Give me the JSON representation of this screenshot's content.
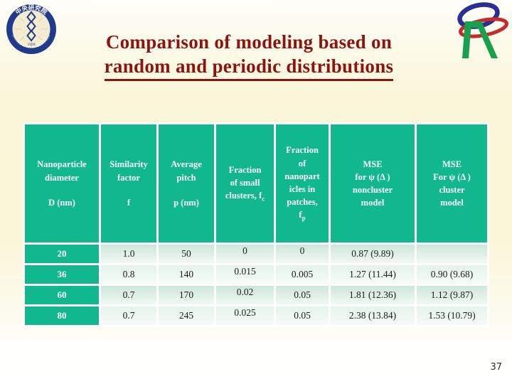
{
  "title": {
    "line1": "Comparison of modeling based on",
    "line2": "random and periodic distributions"
  },
  "page_number": "37",
  "colors": {
    "teal": "#12b88d",
    "title_red": "#8e130e",
    "logo_navy": "#223a8a",
    "logo_green": "#18a14d",
    "logo_red": "#c62a2d"
  },
  "logos": {
    "academia_sinica": {
      "arc_top": "中央研究院",
      "arc_bottom": "ACADEMIA SINICA",
      "year": "1928"
    },
    "nano_r": {
      "letter": "R"
    }
  },
  "table": {
    "headers": [
      {
        "id": "diameter",
        "lines": [
          "Nanoparticle",
          "diameter",
          "",
          "D (nm)"
        ]
      },
      {
        "id": "similarity",
        "lines": [
          "Similarity",
          "factor",
          "",
          "f"
        ]
      },
      {
        "id": "pitch",
        "lines": [
          "Average",
          "pitch",
          "",
          "p (nm)"
        ]
      },
      {
        "id": "fraction-small",
        "lines": [
          "Fraction",
          "of small",
          {
            "text": "clusters, f",
            "sub": "c"
          }
        ]
      },
      {
        "id": "fraction-patches",
        "lines": [
          "Fraction",
          "of",
          "nanopart",
          "icles in",
          "patches,",
          {
            "text": "f",
            "sub": "p"
          }
        ]
      },
      {
        "id": "mse-noncluster",
        "lines": [
          "MSE",
          "for ψ (Δ )",
          "noncluster",
          "model"
        ]
      },
      {
        "id": "mse-cluster",
        "lines": [
          "MSE",
          "For ψ (Δ )",
          "cluster",
          "model"
        ]
      }
    ],
    "rows": [
      {
        "cells": [
          "20",
          "1.0",
          "50",
          "0",
          "0",
          "0.87 (9.89)",
          ""
        ]
      },
      {
        "cells": [
          "36",
          "0.8",
          "140",
          "0.015",
          "0.005",
          "1.27 (11.44)",
          "0.90 (9.68)"
        ]
      },
      {
        "cells": [
          "60",
          "0.7",
          "170",
          "0.02",
          "0.05",
          "1.81 (12.36)",
          "1.12 (9.87)"
        ]
      },
      {
        "cells": [
          "80",
          "0.7",
          "245",
          "0.025",
          "0.05",
          "2.38 (13.84)",
          "1.53 (10.79)"
        ]
      }
    ]
  },
  "chart_data": {
    "type": "table",
    "title": "Comparison of modeling based on random and periodic distributions",
    "columns": [
      "Nanoparticle diameter D (nm)",
      "Similarity factor f",
      "Average pitch p (nm)",
      "Fraction of small clusters, fc",
      "Fraction of nanoparticles in patches, fp",
      "MSE for ψ (Δ) noncluster model",
      "MSE For ψ (Δ) cluster model"
    ],
    "rows": [
      [
        20,
        1.0,
        50,
        0,
        0,
        "0.87 (9.89)",
        null
      ],
      [
        36,
        0.8,
        140,
        0.015,
        0.005,
        "1.27 (11.44)",
        "0.90 (9.68)"
      ],
      [
        60,
        0.7,
        170,
        0.02,
        0.05,
        "1.81 (12.36)",
        "1.12 (9.87)"
      ],
      [
        80,
        0.7,
        245,
        0.025,
        0.05,
        "2.38 (13.84)",
        "1.53 (10.79)"
      ]
    ]
  }
}
